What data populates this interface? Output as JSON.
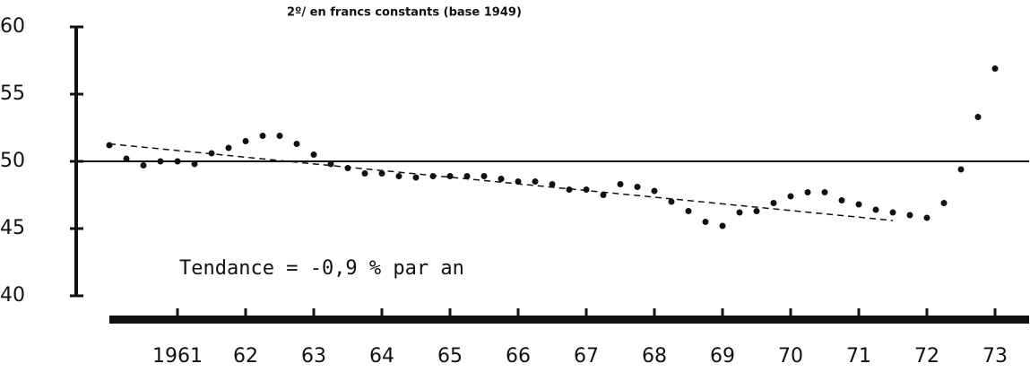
{
  "chart_data": {
    "type": "scatter",
    "subtitle": "2º/  en francs constants (base 1949)",
    "annotation": "Tendance = -0,9 % par an",
    "x": [
      1960.5,
      1960.75,
      1961,
      1961.25,
      1961.5,
      1961.75,
      1962,
      1962.25,
      1962.5,
      1962.75,
      1963,
      1963.25,
      1963.5,
      1963.75,
      1964,
      1964.25,
      1964.5,
      1964.75,
      1965,
      1965.25,
      1965.5,
      1965.75,
      1966,
      1966.25,
      1966.5,
      1966.75,
      1967,
      1967.25,
      1967.5,
      1967.75,
      1968,
      1968.25,
      1968.5,
      1968.75,
      1969,
      1969.25,
      1969.5,
      1969.75,
      1970,
      1970.25,
      1970.5,
      1970.75,
      1971,
      1971.25,
      1971.5,
      1971.75,
      1972,
      1972.25,
      1972.5,
      1972.75,
      1973,
      1973.25,
      1973.5
    ],
    "values": [
      51.2,
      50.2,
      49.7,
      50.0,
      50.0,
      49.8,
      50.6,
      51.0,
      51.5,
      51.9,
      51.9,
      51.3,
      50.5,
      49.8,
      49.5,
      49.1,
      49.1,
      48.9,
      48.8,
      48.9,
      48.9,
      48.9,
      48.9,
      48.7,
      48.5,
      48.5,
      48.3,
      47.9,
      47.9,
      47.5,
      48.3,
      48.1,
      47.8,
      47.0,
      46.3,
      45.5,
      45.2,
      46.2,
      46.3,
      46.9,
      47.4,
      47.7,
      47.7,
      47.1,
      46.8,
      46.4,
      46.2,
      46.0,
      45.8,
      46.9,
      49.4,
      53.3,
      56.9
    ],
    "color": "#111111",
    "trend": {
      "x": [
        1960.5,
        1972.0
      ],
      "values": [
        51.3,
        45.6
      ]
    },
    "reference_line": 50,
    "xlim": [
      1960.5,
      1974.0
    ],
    "xticks": [
      {
        "value": 1961.5,
        "label": "1961"
      },
      {
        "value": 1962.5,
        "label": "62"
      },
      {
        "value": 1963.5,
        "label": "63"
      },
      {
        "value": 1964.5,
        "label": "64"
      },
      {
        "value": 1965.5,
        "label": "65"
      },
      {
        "value": 1966.5,
        "label": "66"
      },
      {
        "value": 1967.5,
        "label": "67"
      },
      {
        "value": 1968.5,
        "label": "68"
      },
      {
        "value": 1969.5,
        "label": "69"
      },
      {
        "value": 1970.5,
        "label": "70"
      },
      {
        "value": 1971.5,
        "label": "71"
      },
      {
        "value": 1972.5,
        "label": "72"
      },
      {
        "value": 1973.5,
        "label": "73"
      }
    ],
    "ylim": [
      40,
      60
    ],
    "yticks": [
      40,
      45,
      50,
      55,
      60
    ]
  }
}
